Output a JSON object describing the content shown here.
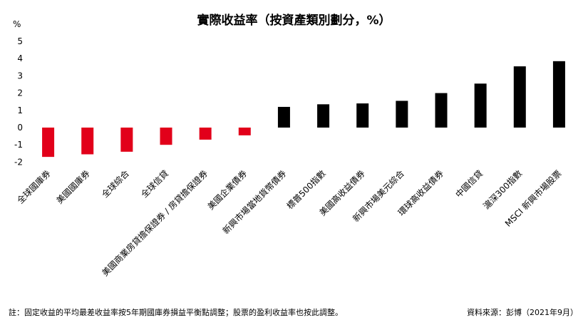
{
  "chart_data": {
    "type": "bar",
    "title": "實際收益率（按資產類別劃分，%）",
    "ylabel": "%",
    "ylim": [
      -2,
      5
    ],
    "yticks": [
      5,
      4,
      3,
      2,
      1,
      0,
      -1,
      -2
    ],
    "grid": false,
    "legend": "none",
    "categories": [
      "全球國庫券",
      "美國國庫券",
      "全球綜合",
      "全球信貸",
      "美國商業房貸擔保證券 / 房貸擔保證券",
      "美國企業債券",
      "新興市場當地貨幣債券",
      "標普500指數",
      "美國高收益債券",
      "新興市場美元綜合",
      "環球高收益債券",
      "中國信貸",
      "滬深300指數",
      "MSCI 新興市場股票"
    ],
    "values": [
      -1.7,
      -1.55,
      -1.4,
      -1.0,
      -0.7,
      -0.45,
      1.2,
      1.35,
      1.4,
      1.55,
      2.0,
      2.55,
      3.55,
      3.85
    ],
    "colors": {
      "negative": "#e2001a",
      "positive": "#000000"
    }
  },
  "footnote_left": "註：固定收益的平均最差收益率按5年期國庫券損益平衡點調整；股票的盈利收益率也按此調整。",
  "footnote_right": "資料來源：彭博（2021年9月）"
}
